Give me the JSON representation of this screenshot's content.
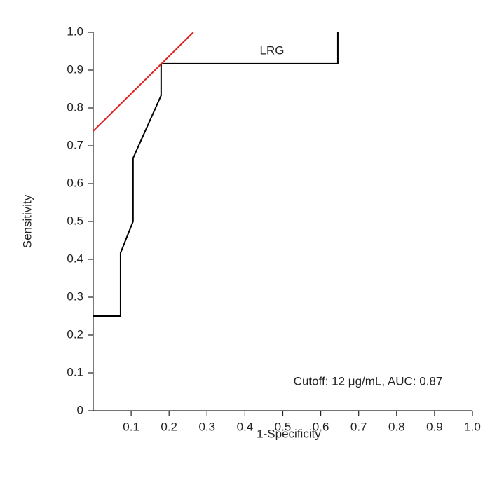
{
  "chart_data": {
    "type": "line",
    "xlabel": "1-Specificity",
    "ylabel": "Sensitivity",
    "annotation": "Cutoff: 12 μg/mL, AUC: 0.87",
    "series": [
      {
        "name": "LRG",
        "color": "#000000",
        "x": [
          0,
          0.072,
          0.072,
          0.105,
          0.105,
          0.179,
          0.179,
          0.645,
          0.645
        ],
        "values": [
          0.25,
          0.25,
          0.417,
          0.5,
          0.667,
          0.833,
          0.917,
          0.917,
          1
        ]
      },
      {
        "color": "#e02020",
        "x": [
          0,
          0.264
        ],
        "values": [
          0.739,
          1
        ]
      }
    ],
    "xlim": [
      0,
      1
    ],
    "ylim": [
      0,
      1
    ],
    "xticks": [
      0.1,
      0.2,
      0.3,
      0.4,
      0.5,
      0.6,
      0.7,
      0.8,
      0.9,
      {
        "value": 1,
        "label": "1.0"
      }
    ],
    "yticks": [
      0,
      0.1,
      0.2,
      0.3,
      0.4,
      0.5,
      0.6,
      0.7,
      0.8,
      0.9,
      {
        "value": 1,
        "label": "1.0"
      }
    ],
    "grid": false
  }
}
